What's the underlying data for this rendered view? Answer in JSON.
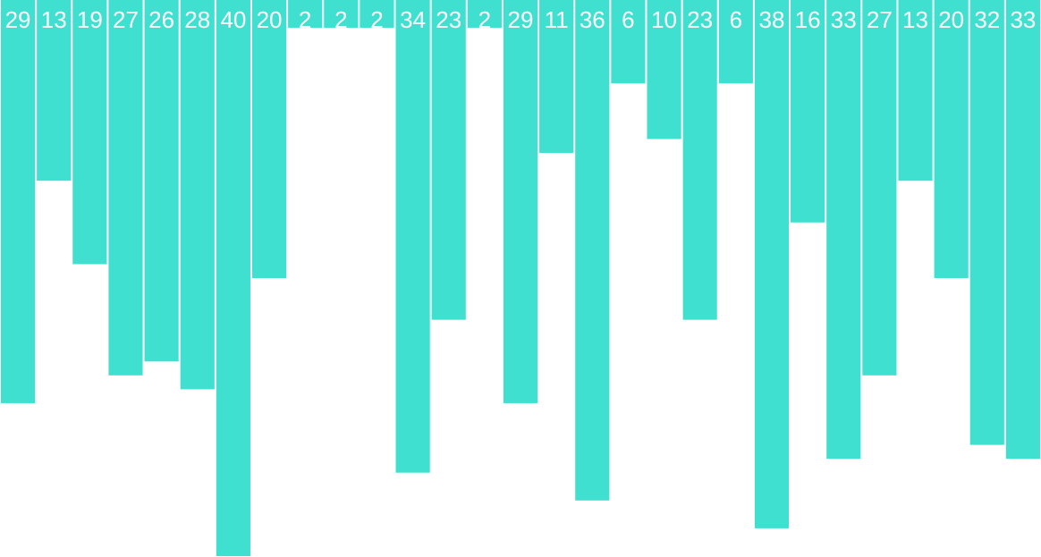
{
  "chart_data": {
    "type": "bar",
    "orientation": "vertical-hanging",
    "values": [
      29,
      13,
      19,
      27,
      26,
      28,
      40,
      20,
      2,
      2,
      2,
      34,
      23,
      2,
      29,
      11,
      36,
      6,
      10,
      23,
      6,
      38,
      16,
      33,
      27,
      13,
      20,
      32,
      33
    ],
    "value_labels": [
      "29",
      "13",
      "19",
      "27",
      "26",
      "28",
      "40",
      "20",
      "2",
      "2",
      "2",
      "34",
      "23",
      "2",
      "29",
      "11",
      "36",
      "6",
      "10",
      "23",
      "6",
      "38",
      "16",
      "33",
      "27",
      "13",
      "20",
      "32",
      "33"
    ],
    "ylim": [
      0,
      40
    ],
    "grid": false,
    "legend": "none"
  },
  "colors": {
    "bar": "#40e0d0",
    "label": "#ffffff",
    "background": "#ffffff"
  }
}
